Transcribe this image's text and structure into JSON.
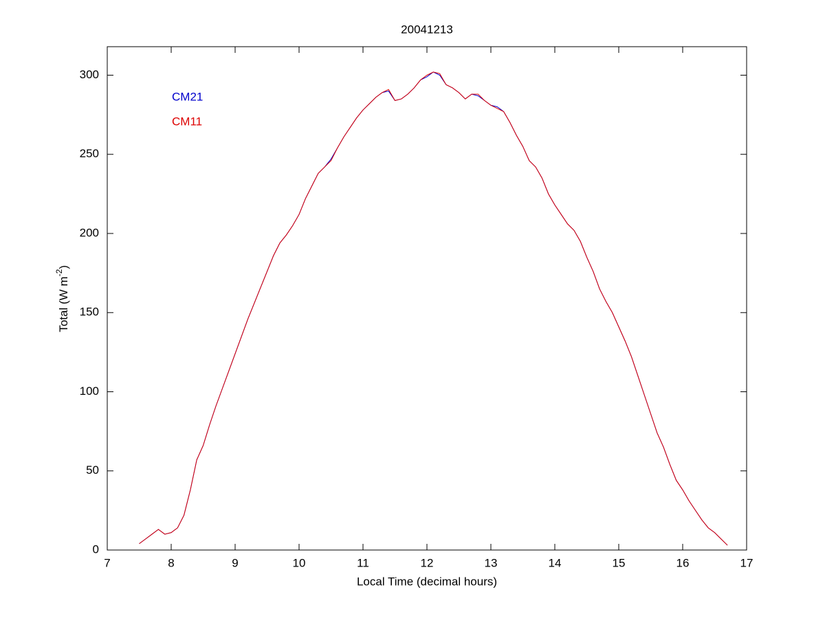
{
  "chart_data": {
    "type": "line",
    "title": "20041213",
    "xlabel": "Local Time (decimal hours)",
    "ylabel": {
      "text": "Total (W m",
      "superscript": "-2",
      "suffix": ")"
    },
    "xlim": [
      7,
      17
    ],
    "ylim": [
      0,
      318
    ],
    "xticks": [
      7,
      8,
      9,
      10,
      11,
      12,
      13,
      14,
      15,
      16,
      17
    ],
    "yticks": [
      0,
      50,
      100,
      150,
      200,
      250,
      300
    ],
    "grid": false,
    "legend": "upper left",
    "x": [
      7.5,
      7.6,
      7.7,
      7.8,
      7.9,
      8.0,
      8.1,
      8.2,
      8.3,
      8.4,
      8.5,
      8.6,
      8.7,
      8.8,
      8.9,
      9.0,
      9.1,
      9.2,
      9.3,
      9.4,
      9.5,
      9.6,
      9.7,
      9.8,
      9.9,
      10.0,
      10.1,
      10.2,
      10.3,
      10.4,
      10.5,
      10.6,
      10.7,
      10.8,
      10.9,
      11.0,
      11.1,
      11.2,
      11.3,
      11.4,
      11.5,
      11.6,
      11.7,
      11.8,
      11.9,
      12.0,
      12.1,
      12.2,
      12.3,
      12.4,
      12.5,
      12.6,
      12.7,
      12.8,
      12.9,
      13.0,
      13.1,
      13.2,
      13.3,
      13.4,
      13.5,
      13.6,
      13.7,
      13.8,
      13.9,
      14.0,
      14.1,
      14.2,
      14.3,
      14.4,
      14.5,
      14.6,
      14.7,
      14.8,
      14.9,
      15.0,
      15.1,
      15.2,
      15.3,
      15.4,
      15.5,
      15.6,
      15.7,
      15.8,
      15.9,
      16.0,
      16.1,
      16.2,
      16.3,
      16.4,
      16.5,
      16.6,
      16.7
    ],
    "series": [
      {
        "name": "CM21",
        "color": "#0000cc",
        "values": [
          4,
          7,
          10,
          13,
          10,
          11,
          14,
          22,
          38,
          57,
          66,
          79,
          91,
          102,
          113,
          124,
          135,
          146,
          156,
          166,
          176,
          186,
          194,
          199,
          205,
          212,
          222,
          230,
          238,
          242,
          247,
          254,
          261,
          267,
          273,
          278,
          282,
          286,
          289,
          290,
          284,
          285,
          288,
          292,
          297,
          299,
          302,
          300,
          294,
          292,
          289,
          285,
          288,
          287,
          284,
          281,
          280,
          277,
          270,
          262,
          255,
          246,
          242,
          235,
          225,
          218,
          212,
          206,
          202,
          195,
          185,
          176,
          165,
          157,
          150,
          141,
          132,
          122,
          110,
          98,
          86,
          74,
          65,
          54,
          44,
          38,
          31,
          25,
          19,
          14,
          11,
          7,
          3
        ]
      },
      {
        "name": "CM11",
        "color": "#dd0000",
        "values": [
          4,
          7,
          10,
          13,
          10,
          11,
          14,
          22,
          38,
          57,
          66,
          79,
          91,
          102,
          113,
          124,
          135,
          146,
          156,
          166,
          176,
          186,
          194,
          199,
          205,
          212,
          222,
          230,
          238,
          242,
          246,
          254,
          261,
          267,
          273,
          278,
          282,
          286,
          289,
          291,
          284,
          285,
          288,
          292,
          297,
          300,
          302,
          301,
          294,
          292,
          289,
          285,
          288,
          288,
          284,
          281,
          279,
          277,
          270,
          262,
          255,
          246,
          242,
          235,
          225,
          218,
          212,
          206,
          202,
          195,
          185,
          176,
          165,
          157,
          150,
          141,
          132,
          122,
          110,
          98,
          86,
          74,
          65,
          54,
          44,
          38,
          31,
          25,
          19,
          14,
          11,
          7,
          3
        ]
      }
    ]
  }
}
